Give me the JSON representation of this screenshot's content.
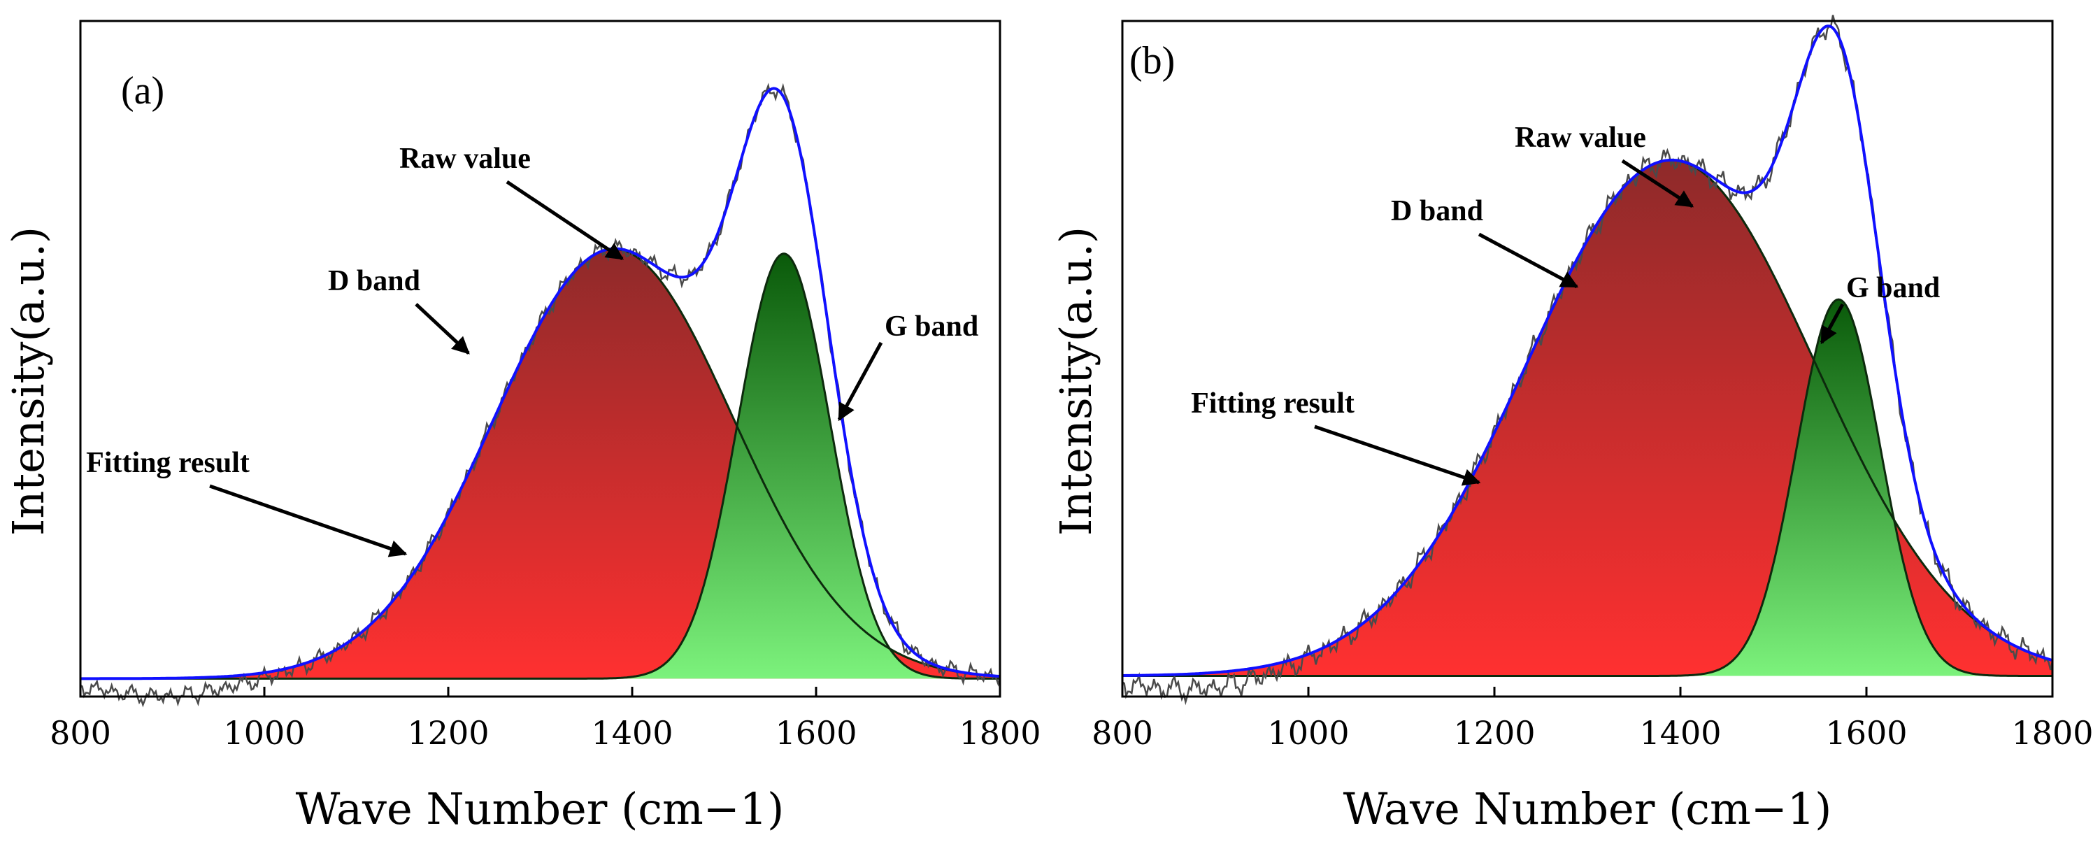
{
  "colors": {
    "fit": "#1010ff",
    "raw": "#4a4a4a",
    "d_band_top": "#8e2a2a",
    "d_band_bottom": "#ff3030",
    "g_band_top": "#0a5a0a",
    "g_band_bottom": "#7cf27c"
  },
  "chart_data": [
    {
      "type": "area",
      "panel_label": "(a)",
      "xlabel": "Wave Number (cm−1)",
      "ylabel": "Intensity(a.u.)",
      "xlim": [
        800,
        1800
      ],
      "ylim": [
        -0.04,
        1.47
      ],
      "x_ticks": [
        "800",
        "1000",
        "1200",
        "1400",
        "1600",
        "1800"
      ],
      "x_tick_values": [
        800,
        1000,
        1200,
        1400,
        1600,
        1800
      ],
      "y_ticks": [],
      "series": [
        {
          "name": "D band",
          "kind": "gaussian",
          "center": 1380,
          "height": 0.96,
          "sigma": 130
        },
        {
          "name": "G band",
          "kind": "gaussian",
          "center": 1565,
          "height": 0.95,
          "sigma": 50
        },
        {
          "name": "Fitting result",
          "kind": "sum_of_bands"
        },
        {
          "name": "Raw value",
          "kind": "noisy",
          "noise_amp": 0.012,
          "baseline_dip_center": 890,
          "baseline_dip_depth": 0.04
        }
      ],
      "annotations": [
        {
          "text": "Raw value",
          "target_x": 1415
        },
        {
          "text": "D band",
          "target_x": 1290
        },
        {
          "text": "G band",
          "target_x": 1610
        },
        {
          "text": "Fitting result",
          "target_x": 1155
        }
      ]
    },
    {
      "type": "area",
      "panel_label": "(b)",
      "xlabel": "Wave Number (cm−1)",
      "ylabel": "Intensity(a.u.)",
      "xlim": [
        800,
        1800
      ],
      "ylim": [
        -0.04,
        1.27
      ],
      "x_ticks": [
        "800",
        "1000",
        "1200",
        "1400",
        "1600",
        "1800"
      ],
      "x_tick_values": [
        800,
        1000,
        1200,
        1400,
        1600,
        1800
      ],
      "y_ticks": [],
      "series": [
        {
          "name": "D band",
          "kind": "gaussian",
          "center": 1390,
          "height": 1.0,
          "sigma": 155
        },
        {
          "name": "G band",
          "kind": "gaussian",
          "center": 1570,
          "height": 0.73,
          "sigma": 45
        },
        {
          "name": "Fitting result",
          "kind": "sum_of_bands"
        },
        {
          "name": "Raw value",
          "kind": "noisy",
          "noise_amp": 0.014,
          "baseline_dip_center": 880,
          "baseline_dip_depth": 0.03
        }
      ],
      "annotations": [
        {
          "text": "Raw value",
          "target_x": 1465
        },
        {
          "text": "D band",
          "target_x": 1300
        },
        {
          "text": "G band",
          "target_x": 1580
        },
        {
          "text": "Fitting result",
          "target_x": 1195
        }
      ]
    }
  ]
}
